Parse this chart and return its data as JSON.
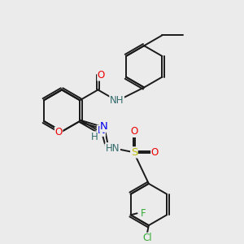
{
  "background_color": "#ebebeb",
  "bond_color": "#1a1a1a",
  "atom_colors": {
    "N": "#0000ee",
    "O": "#ee0000",
    "S": "#bbbb00",
    "Cl": "#33aa33",
    "F": "#33aa33",
    "H": "#336b6b",
    "C": "#1a1a1a"
  },
  "bond_lw": 1.4,
  "font_size": 8.5,
  "fig_size": 3.0,
  "dpi": 100
}
